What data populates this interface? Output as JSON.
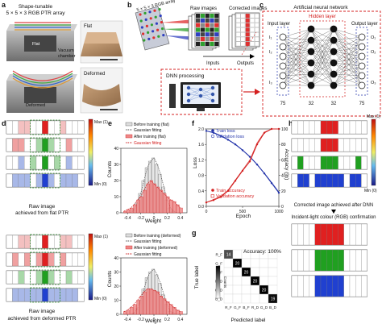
{
  "panels": {
    "a": {
      "letter": "a",
      "title_l1": "Shape-tunable",
      "title_l2": "5 × 5 × 3 RGB PTR array",
      "flat_label": "Flat",
      "vacuum_l1": "Vacuum",
      "vacuum_l2": "chamber",
      "deformed_label": "Deformed",
      "flat_photo": "Flat",
      "deformed_photo": "Deformed"
    },
    "b": {
      "letter": "b",
      "array_label": "5 × 5 × 3 RGB array",
      "raw_images": "Raw images",
      "corrected_images": "Corrected images",
      "inputs": "Inputs",
      "outputs": "Outputs",
      "dnn": "DNN processing"
    },
    "c": {
      "letter": "c",
      "title": "Artificial neural network",
      "hidden": "Hidden layer",
      "input_layer": "Input layer",
      "output_layer": "Output layer",
      "n_in": "75",
      "n_h1": "32",
      "n_h2": "32",
      "n_out": "75",
      "w_l1": "I₁",
      "w_l2": "I₂",
      "w_l3": "I₃",
      "w_r1": "O₁",
      "w_r2": "O₂",
      "w_r3": "O₃"
    },
    "d": {
      "letter": "d",
      "caption1_l1": "Raw image",
      "caption1_l2": "achieved from flat PTR",
      "caption2_l1": "Raw image",
      "caption2_l2": "achieved from deformed PTR",
      "max": "Max (1)",
      "min": "Min (0)"
    },
    "e": {
      "letter": "e",
      "ylabel": "Counts",
      "xlabel": "Weight",
      "legend1": [
        "Before training (flat)",
        "Gaussian fitting",
        "After training (flat)",
        "Gaussian fitting"
      ],
      "legend2": [
        "Before training (deformed)",
        "Gaussian fitting",
        "After training (deformed)",
        "Gaussian fitting"
      ]
    },
    "f": {
      "letter": "f",
      "ylabel_left": "Loss",
      "ylabel_right": "Accuracy (%)",
      "xlabel": "Epoch",
      "legend": [
        "Train loss",
        "Validation loss",
        "Train accuracy",
        "Validation accuracy"
      ]
    },
    "g": {
      "letter": "g",
      "ylabel": "True label",
      "xlabel": "Predicted label",
      "accuracy": "Accuracy: 100%",
      "counts_label": "Counts",
      "labels": [
        "R_F",
        "G_F",
        "B_F",
        "R_D",
        "G_D",
        "B_D"
      ],
      "diag": [
        "14",
        "20",
        "20",
        "20",
        "20",
        "19"
      ]
    },
    "h": {
      "letter": "h",
      "caption": "Corrected image achieved after DNN",
      "confirm": "Incident-light colour (RGB) confirmation",
      "max": "Max (1)",
      "min": "Min (0)"
    }
  },
  "chart_data": [
    {
      "type": "bar",
      "panel": "e-top",
      "xlabel": "Weight",
      "ylabel": "Counts",
      "xlim": [
        -0.5,
        0.5
      ],
      "ylim": [
        0,
        40
      ],
      "yticks": [
        0,
        10,
        20,
        30,
        40
      ],
      "xticks": [
        -0.4,
        -0.2,
        0,
        0.2,
        0.4
      ],
      "x": [
        -0.45,
        -0.4,
        -0.35,
        -0.3,
        -0.25,
        -0.2,
        -0.15,
        -0.1,
        -0.05,
        0,
        0.05,
        0.1,
        0.15,
        0.2,
        0.25,
        0.3,
        0.35,
        0.4
      ],
      "series": [
        {
          "name": "Before training (flat)",
          "values": [
            0,
            0,
            0,
            2,
            6,
            12,
            20,
            28,
            32,
            34,
            30,
            24,
            16,
            8,
            3,
            1,
            0,
            0
          ]
        },
        {
          "name": "After training (flat)",
          "values": [
            1,
            2,
            3,
            5,
            8,
            10,
            14,
            18,
            20,
            18,
            16,
            14,
            12,
            10,
            8,
            7,
            5,
            3
          ]
        }
      ]
    },
    {
      "type": "bar",
      "panel": "e-bottom",
      "xlabel": "Weight",
      "ylabel": "Counts",
      "xlim": [
        -0.5,
        0.5
      ],
      "ylim": [
        0,
        40
      ],
      "yticks": [
        0,
        10,
        20,
        30,
        40
      ],
      "xticks": [
        -0.4,
        -0.2,
        0,
        0.2,
        0.4
      ],
      "x": [
        -0.45,
        -0.4,
        -0.35,
        -0.3,
        -0.25,
        -0.2,
        -0.15,
        -0.1,
        -0.05,
        0,
        0.05,
        0.1,
        0.15,
        0.2,
        0.25,
        0.3,
        0.35,
        0.4
      ],
      "series": [
        {
          "name": "Before training (deformed)",
          "values": [
            0,
            0,
            0,
            1,
            4,
            10,
            18,
            26,
            30,
            32,
            28,
            22,
            14,
            7,
            2,
            1,
            0,
            0
          ]
        },
        {
          "name": "After training (deformed)",
          "values": [
            2,
            3,
            5,
            7,
            10,
            13,
            16,
            18,
            18,
            17,
            16,
            13,
            11,
            9,
            7,
            5,
            3,
            2
          ]
        }
      ]
    },
    {
      "type": "line",
      "panel": "f",
      "xlabel": "Epoch",
      "ylabel": "Loss",
      "xlim": [
        0,
        1000
      ],
      "ylim": [
        0,
        2.0
      ],
      "y2lim": [
        0,
        100
      ],
      "xticks": [
        0,
        500,
        1000
      ],
      "yticks": [
        0,
        0.4,
        0.8,
        1.2,
        1.6,
        2.0
      ],
      "y2ticks": [
        0,
        20,
        40,
        60,
        80,
        100
      ],
      "x": [
        0,
        100,
        200,
        300,
        400,
        500,
        600,
        700,
        800,
        900,
        1000
      ],
      "series": [
        {
          "name": "Train loss",
          "axis": "left",
          "values": [
            1.95,
            1.9,
            1.82,
            1.72,
            1.6,
            1.45,
            1.28,
            1.08,
            0.85,
            0.6,
            0.35
          ]
        },
        {
          "name": "Validation loss",
          "axis": "left",
          "values": [
            1.95,
            1.91,
            1.83,
            1.73,
            1.61,
            1.46,
            1.29,
            1.09,
            0.86,
            0.62,
            0.37
          ]
        },
        {
          "name": "Train accuracy",
          "axis": "right",
          "values": [
            5,
            8,
            12,
            20,
            33,
            46,
            58,
            80,
            95,
            100,
            100
          ]
        },
        {
          "name": "Validation accuracy",
          "axis": "right",
          "values": [
            5,
            9,
            13,
            21,
            34,
            47,
            60,
            82,
            96,
            100,
            100
          ]
        }
      ]
    },
    {
      "type": "heatmap",
      "panel": "g",
      "xlabel": "Predicted label",
      "ylabel": "True label",
      "labels": [
        "R_F",
        "G_F",
        "B_F",
        "R_D",
        "G_D",
        "B_D"
      ],
      "diagonal": [
        14,
        20,
        20,
        20,
        20,
        19
      ],
      "counts_ticks": [
        0,
        5,
        10,
        15,
        20
      ]
    }
  ]
}
